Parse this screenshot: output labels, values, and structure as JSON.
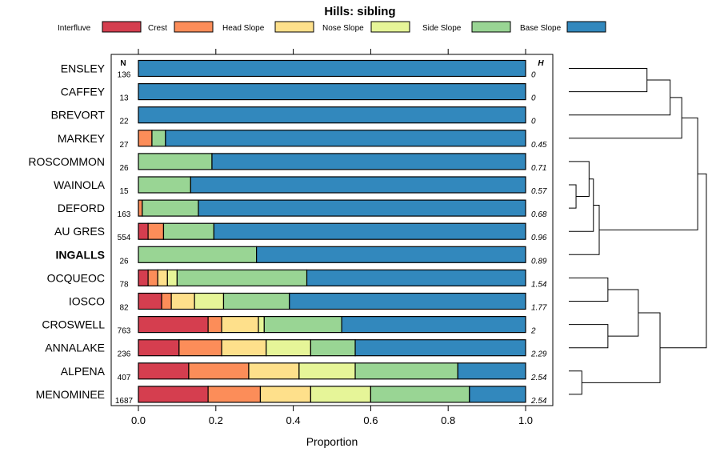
{
  "chart_data": {
    "type": "bar",
    "stacked": true,
    "orientation": "horizontal",
    "title": "Hills: sibling",
    "xlabel": "Proportion",
    "xlim": [
      0,
      1
    ],
    "xticks": [
      0,
      0.2,
      0.4,
      0.6,
      0.8,
      1
    ],
    "xtick_labels": [
      "0.0",
      "0.2",
      "0.4",
      "0.6",
      "0.8",
      "1.0"
    ],
    "n_header": "N",
    "h_header": "H",
    "legend": [
      {
        "name": "Interfluve",
        "color": "#D53E4F"
      },
      {
        "name": "Crest",
        "color": "#FC8D59"
      },
      {
        "name": "Head Slope",
        "color": "#FEE08B"
      },
      {
        "name": "Nose Slope",
        "color": "#E6F598"
      },
      {
        "name": "Side Slope",
        "color": "#99D594"
      },
      {
        "name": "Base Slope",
        "color": "#3288BD"
      }
    ],
    "categories": [
      "ENSLEY",
      "CAFFEY",
      "BREVORT",
      "MARKEY",
      "ROSCOMMON",
      "WAINOLA",
      "DEFORD",
      "AU GRES",
      "INGALLS",
      "OCQUEOC",
      "IOSCO",
      "CROSWELL",
      "ANNALAKE",
      "ALPENA",
      "MENOMINEE"
    ],
    "highlight": "INGALLS",
    "n": [
      "136",
      "13",
      "22",
      "27",
      "26",
      "15",
      "163",
      "554",
      "26",
      "78",
      "82",
      "763",
      "236",
      "407",
      "1687"
    ],
    "h": [
      "0",
      "0",
      "0",
      "0.45",
      "0.71",
      "0.57",
      "0.68",
      "0.96",
      "0.89",
      "1.54",
      "1.77",
      "2",
      "2.29",
      "2.54",
      "2.54"
    ],
    "series": [
      {
        "name": "Interfluve",
        "values": [
          0,
          0,
          0,
          0,
          0,
          0,
          0,
          0.025,
          0,
          0.025,
          0.06,
          0.18,
          0.105,
          0.13,
          0.18
        ]
      },
      {
        "name": "Crest",
        "values": [
          0,
          0,
          0,
          0.035,
          0,
          0,
          0.01,
          0.04,
          0,
          0.025,
          0.025,
          0.035,
          0.11,
          0.155,
          0.135
        ]
      },
      {
        "name": "Head Slope",
        "values": [
          0,
          0,
          0,
          0,
          0,
          0,
          0,
          0,
          0,
          0.025,
          0.06,
          0.095,
          0.115,
          0.13,
          0.13
        ]
      },
      {
        "name": "Nose Slope",
        "values": [
          0,
          0,
          0,
          0,
          0,
          0,
          0,
          0,
          0,
          0.025,
          0.075,
          0.015,
          0.115,
          0.145,
          0.155
        ]
      },
      {
        "name": "Side Slope",
        "values": [
          0,
          0,
          0,
          0.035,
          0.19,
          0.135,
          0.145,
          0.13,
          0.305,
          0.335,
          0.17,
          0.2,
          0.115,
          0.265,
          0.255
        ]
      },
      {
        "name": "Base Slope",
        "values": [
          1,
          1,
          1,
          0.93,
          0.81,
          0.865,
          0.845,
          0.805,
          0.695,
          0.565,
          0.61,
          0.475,
          0.44,
          0.175,
          0.145
        ]
      }
    ],
    "dendrogram": {
      "description": "hierarchical clustering of the rows, leaves in row order",
      "merges": [
        {
          "a": 0,
          "b": 1,
          "height": 0.46
        },
        {
          "a": 15,
          "b": 2,
          "height": 0.3
        },
        {
          "a": 16,
          "b": 3,
          "height": 0.22
        },
        {
          "a": 5,
          "b": 6,
          "height": 0.95
        },
        {
          "a": 18,
          "b": 4,
          "height": 0.86
        },
        {
          "a": 19,
          "b": 7,
          "height": 0.83
        },
        {
          "a": 20,
          "b": 8,
          "height": 0.79
        },
        {
          "a": 17,
          "b": 21,
          "height": 0.11
        },
        {
          "a": 9,
          "b": 10,
          "height": 0.73
        },
        {
          "a": 11,
          "b": 12,
          "height": 0.73
        },
        {
          "a": 23,
          "b": 24,
          "height": 0.52
        },
        {
          "a": 13,
          "b": 14,
          "height": 0.91
        },
        {
          "a": 25,
          "b": 26,
          "height": 0.37
        },
        {
          "a": 22,
          "b": 27,
          "height": 0.05
        }
      ]
    }
  }
}
